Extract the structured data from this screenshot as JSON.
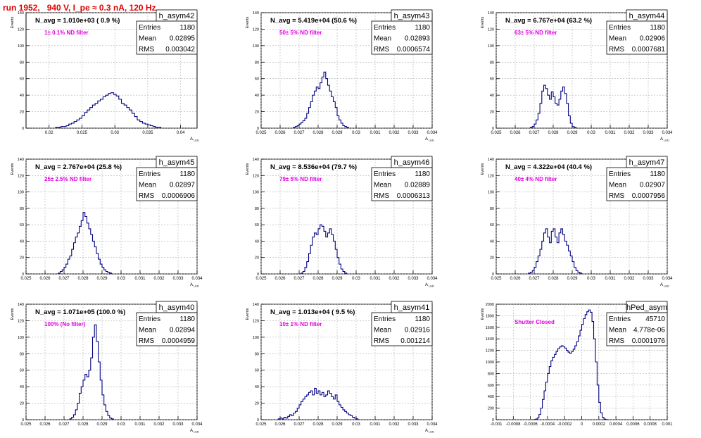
{
  "title": "run 1952,   940 V, I_pe ≈ 0.3 nA, 120 Hz",
  "chart_data": [
    {
      "type": "histogram",
      "name": "h_asym42",
      "navg": "N_avg = 1.010e+03 ( 0.9 %)",
      "annotation": "1± 0.1% ND filter",
      "stats": {
        "Entries": "1180",
        "Mean": "0.02895",
        "RMS": "0.003042"
      },
      "ylabel": "Events",
      "xlabel": "A_LED",
      "xlim": [
        0.0165,
        0.0425
      ],
      "ylim": [
        0,
        140
      ],
      "xticks": [
        "0.02",
        "0.025",
        "0.03",
        "0.035",
        "0.04"
      ],
      "xtick_values": [
        0.02,
        0.025,
        0.03,
        0.035,
        0.04
      ],
      "yticks": [
        0,
        20,
        40,
        60,
        80,
        100,
        120,
        140
      ],
      "bins": {
        "start": 0.021,
        "width": 0.0004,
        "counts": [
          1,
          1,
          2,
          2,
          3,
          5,
          6,
          8,
          10,
          12,
          15,
          19,
          22,
          25,
          28,
          30,
          33,
          35,
          38,
          40,
          42,
          43,
          41,
          39,
          35,
          30,
          28,
          25,
          22,
          18,
          14,
          10,
          8,
          6,
          5,
          4,
          3,
          2,
          1,
          1
        ]
      }
    },
    {
      "type": "histogram",
      "name": "h_asym43",
      "navg": "N_avg = 5.419e+04 (50.6 %)",
      "annotation": "50± 5% ND filter",
      "stats": {
        "Entries": "1180",
        "Mean": "0.02893",
        "RMS": "0.0006574"
      },
      "ylabel": "Events",
      "xlabel": "A_LED",
      "xlim": [
        0.025,
        0.034
      ],
      "ylim": [
        0,
        140
      ],
      "xticks": [
        "0.025",
        "0.026",
        "0.027",
        "0.028",
        "0.029",
        "0.03",
        "0.031",
        "0.032",
        "0.033",
        "0.034"
      ],
      "xtick_values": [
        0.025,
        0.026,
        0.027,
        0.028,
        0.029,
        0.03,
        0.031,
        0.032,
        0.033,
        0.034
      ],
      "yticks": [
        0,
        20,
        40,
        60,
        80,
        100,
        120,
        140
      ],
      "bins": {
        "start": 0.0267,
        "width": 0.0001,
        "counts": [
          1,
          2,
          3,
          5,
          7,
          9,
          12,
          18,
          25,
          32,
          40,
          45,
          50,
          48,
          55,
          62,
          68,
          60,
          52,
          45,
          38,
          32,
          25,
          15,
          10,
          6,
          3,
          2,
          1
        ]
      }
    },
    {
      "type": "histogram",
      "name": "h_asym44",
      "navg": "N_avg = 6.767e+04 (63.2 %)",
      "annotation": "63± 5% ND filter",
      "stats": {
        "Entries": "1180",
        "Mean": "0.02906",
        "RMS": "0.0007681"
      },
      "ylabel": "Events",
      "xlabel": "A_LED",
      "xlim": [
        0.025,
        0.034
      ],
      "ylim": [
        0,
        140
      ],
      "xticks": [
        "0.025",
        "0.026",
        "0.027",
        "0.028",
        "0.029",
        "0.03",
        "0.031",
        "0.032",
        "0.033",
        "0.034"
      ],
      "xtick_values": [
        0.025,
        0.026,
        0.027,
        0.028,
        0.029,
        0.03,
        0.031,
        0.032,
        0.033,
        0.034
      ],
      "yticks": [
        0,
        20,
        40,
        60,
        80,
        100,
        120,
        140
      ],
      "bins": {
        "start": 0.0268,
        "width": 0.0001,
        "counts": [
          1,
          2,
          5,
          10,
          18,
          30,
          45,
          52,
          48,
          40,
          35,
          44,
          38,
          30,
          28,
          35,
          45,
          50,
          42,
          30,
          15,
          6,
          2,
          1
        ]
      }
    },
    {
      "type": "histogram",
      "name": "h_asym45",
      "navg": "N_avg = 2.767e+04 (25.8 %)",
      "annotation": "25± 2.5% ND filter",
      "stats": {
        "Entries": "1180",
        "Mean": "0.02897",
        "RMS": "0.0006906"
      },
      "ylabel": "Events",
      "xlabel": "A_LED",
      "xlim": [
        0.025,
        0.034
      ],
      "ylim": [
        0,
        140
      ],
      "xticks": [
        "0.025",
        "0.026",
        "0.027",
        "0.028",
        "0.029",
        "0.03",
        "0.031",
        "0.032",
        "0.033",
        "0.034"
      ],
      "xtick_values": [
        0.025,
        0.026,
        0.027,
        0.028,
        0.029,
        0.03,
        0.031,
        0.032,
        0.033,
        0.034
      ],
      "yticks": [
        0,
        20,
        40,
        60,
        80,
        100,
        120,
        140
      ],
      "bins": {
        "start": 0.0267,
        "width": 0.0001,
        "counts": [
          1,
          3,
          5,
          8,
          12,
          18,
          22,
          30,
          38,
          45,
          50,
          58,
          65,
          75,
          70,
          62,
          55,
          48,
          40,
          33,
          25,
          18,
          12,
          8,
          5,
          3,
          2,
          1
        ]
      }
    },
    {
      "type": "histogram",
      "name": "h_asym46",
      "navg": "N_avg = 8.536e+04 (79.7 %)",
      "annotation": "79± 5% ND filter",
      "stats": {
        "Entries": "1180",
        "Mean": "0.02889",
        "RMS": "0.0006313"
      },
      "ylabel": "Events",
      "xlabel": "A_LED",
      "xlim": [
        0.025,
        0.034
      ],
      "ylim": [
        0,
        140
      ],
      "xticks": [
        "0.025",
        "0.026",
        "0.027",
        "0.028",
        "0.029",
        "0.03",
        "0.031",
        "0.032",
        "0.033",
        "0.034"
      ],
      "xtick_values": [
        0.025,
        0.026,
        0.027,
        0.028,
        0.029,
        0.03,
        0.031,
        0.032,
        0.033,
        0.034
      ],
      "yticks": [
        0,
        20,
        40,
        60,
        80,
        100,
        120,
        140
      ],
      "bins": {
        "start": 0.0271,
        "width": 0.0001,
        "counts": [
          1,
          3,
          8,
          15,
          25,
          35,
          45,
          50,
          48,
          55,
          60,
          58,
          52,
          45,
          50,
          55,
          48,
          40,
          30,
          20,
          12,
          6,
          3,
          1
        ]
      }
    },
    {
      "type": "histogram",
      "name": "h_asym47",
      "navg": "N_avg = 4.322e+04 (40.4 %)",
      "annotation": "40± 4% ND filter",
      "stats": {
        "Entries": "1180",
        "Mean": "0.02907",
        "RMS": "0.0007956"
      },
      "ylabel": "Events",
      "xlabel": "A_LED",
      "xlim": [
        0.025,
        0.034
      ],
      "ylim": [
        0,
        140
      ],
      "xticks": [
        "0.025",
        "0.026",
        "0.027",
        "0.028",
        "0.029",
        "0.03",
        "0.031",
        "0.032",
        "0.033",
        "0.034"
      ],
      "xtick_values": [
        0.025,
        0.026,
        0.027,
        0.028,
        0.029,
        0.03,
        0.031,
        0.032,
        0.033,
        0.034
      ],
      "yticks": [
        0,
        20,
        40,
        60,
        80,
        100,
        120,
        140
      ],
      "bins": {
        "start": 0.0267,
        "width": 0.0001,
        "counts": [
          1,
          2,
          4,
          8,
          15,
          22,
          30,
          40,
          50,
          55,
          45,
          38,
          52,
          55,
          45,
          38,
          50,
          55,
          48,
          40,
          35,
          28,
          22,
          15,
          8,
          4,
          2,
          1
        ]
      }
    },
    {
      "type": "histogram",
      "name": "h_asym40",
      "navg": "N_avg = 1.071e+05 (100.0 %)",
      "annotation": "100% (No filter)",
      "stats": {
        "Entries": "1180",
        "Mean": "0.02894",
        "RMS": "0.0004959"
      },
      "ylabel": "Events",
      "xlabel": "A_LED",
      "xlim": [
        0.025,
        0.034
      ],
      "ylim": [
        0,
        140
      ],
      "xticks": [
        "0.025",
        "0.026",
        "0.027",
        "0.028",
        "0.029",
        "0.03",
        "0.031",
        "0.032",
        "0.033",
        "0.034"
      ],
      "xtick_values": [
        0.025,
        0.026,
        0.027,
        0.028,
        0.029,
        0.03,
        0.031,
        0.032,
        0.033,
        0.034
      ],
      "yticks": [
        0,
        20,
        40,
        60,
        80,
        100,
        120,
        140
      ],
      "bins": {
        "start": 0.0273,
        "width": 0.0001,
        "counts": [
          1,
          3,
          6,
          12,
          20,
          32,
          40,
          48,
          55,
          52,
          60,
          75,
          100,
          115,
          95,
          70,
          48,
          30,
          18,
          10,
          5,
          2,
          1
        ]
      }
    },
    {
      "type": "histogram",
      "name": "h_asym41",
      "navg": "N_avg = 1.013e+04 ( 9.5 %)",
      "annotation": "10± 1% ND filter",
      "stats": {
        "Entries": "1180",
        "Mean": "0.02916",
        "RMS": "0.001214"
      },
      "ylabel": "Events",
      "xlabel": "A_LED",
      "xlim": [
        0.025,
        0.034
      ],
      "ylim": [
        0,
        140
      ],
      "xticks": [
        "0.025",
        "0.026",
        "0.027",
        "0.028",
        "0.029",
        "0.03",
        "0.031",
        "0.032",
        "0.033",
        "0.034"
      ],
      "xtick_values": [
        0.025,
        0.026,
        0.027,
        0.028,
        0.029,
        0.03,
        0.031,
        0.032,
        0.033,
        0.034
      ],
      "yticks": [
        0,
        20,
        40,
        60,
        80,
        100,
        120,
        140
      ],
      "bins": {
        "start": 0.0259,
        "width": 0.0001,
        "counts": [
          1,
          2,
          1,
          3,
          2,
          4,
          6,
          5,
          8,
          10,
          14,
          18,
          22,
          25,
          28,
          30,
          33,
          35,
          30,
          38,
          32,
          35,
          30,
          33,
          28,
          30,
          35,
          32,
          28,
          25,
          30,
          22,
          18,
          15,
          12,
          10,
          8,
          6,
          5,
          3,
          2,
          1
        ]
      }
    },
    {
      "type": "histogram",
      "name": "hPed_asym",
      "navg": "",
      "annotation": "Shutter Closed",
      "stats": {
        "Entries": "45710",
        "Mean": "4.778e-06",
        "RMS": "0.0001976"
      },
      "ylabel": "Events",
      "xlabel": "",
      "xlim": [
        -0.001,
        0.001
      ],
      "ylim": [
        0,
        2000
      ],
      "xticks": [
        "-0.001",
        "-0.0008",
        "-0.0006",
        "-0.0004",
        "-0.0002",
        "0",
        "0.0002",
        "0.0004",
        "0.0006",
        "0.0008",
        "0.001"
      ],
      "xtick_values": [
        -0.001,
        -0.0008,
        -0.0006,
        -0.0004,
        -0.0002,
        0,
        0.0002,
        0.0004,
        0.0006,
        0.0008,
        0.001
      ],
      "yticks": [
        0,
        200,
        400,
        600,
        800,
        1000,
        1200,
        1400,
        1600,
        1800,
        2000
      ],
      "bins": {
        "start": -0.00056,
        "width": 2e-05,
        "counts": [
          3,
          10,
          30,
          90,
          200,
          350,
          500,
          650,
          800,
          920,
          1020,
          1080,
          1130,
          1180,
          1230,
          1260,
          1280,
          1270,
          1240,
          1200,
          1170,
          1150,
          1180,
          1220,
          1280,
          1350,
          1450,
          1550,
          1650,
          1750,
          1820,
          1870,
          1900,
          1860,
          1700,
          1400,
          1000,
          600,
          300,
          120,
          40,
          10,
          3
        ]
      }
    }
  ]
}
